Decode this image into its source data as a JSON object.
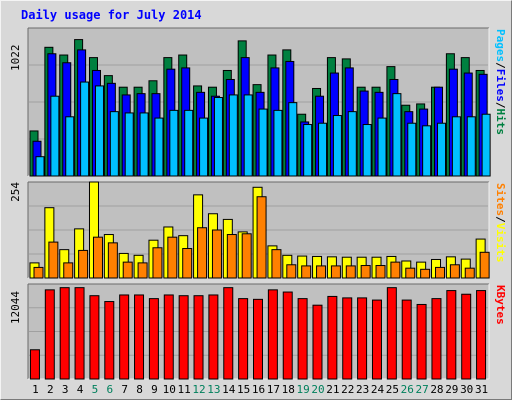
{
  "chart_data": [
    {
      "type": "bar",
      "panel": "pages-files-hits",
      "title": "Daily usage for July 2014",
      "y_tick_label": "1022",
      "y_tick_value": 1022,
      "ylim": [
        0,
        1150
      ],
      "categories": [
        "1",
        "2",
        "3",
        "4",
        "5",
        "6",
        "7",
        "8",
        "9",
        "10",
        "11",
        "12",
        "13",
        "14",
        "15",
        "16",
        "17",
        "18",
        "19",
        "20",
        "21",
        "22",
        "23",
        "24",
        "25",
        "26",
        "27",
        "28",
        "29",
        "30",
        "31"
      ],
      "series": [
        {
          "name": "Hits",
          "color": "#008040",
          "values": [
            350,
            1000,
            940,
            1060,
            920,
            780,
            690,
            690,
            740,
            920,
            940,
            700,
            690,
            820,
            1050,
            710,
            940,
            980,
            480,
            680,
            920,
            910,
            690,
            690,
            850,
            550,
            560,
            690,
            950,
            920,
            820
          ]
        },
        {
          "name": "Files",
          "color": "#0000ff",
          "values": [
            270,
            950,
            880,
            980,
            820,
            720,
            630,
            640,
            640,
            830,
            840,
            650,
            620,
            750,
            920,
            650,
            840,
            890,
            420,
            620,
            800,
            840,
            660,
            650,
            750,
            500,
            520,
            690,
            830,
            800,
            790
          ]
        },
        {
          "name": "Pages",
          "color": "#00c0ff",
          "values": [
            150,
            620,
            460,
            730,
            700,
            500,
            490,
            490,
            450,
            510,
            510,
            450,
            610,
            630,
            630,
            520,
            510,
            570,
            400,
            410,
            470,
            500,
            400,
            450,
            640,
            410,
            390,
            410,
            460,
            460,
            480
          ]
        }
      ],
      "legend": [
        "Pages",
        "/",
        "Files",
        "/",
        "Hits"
      ]
    },
    {
      "type": "bar",
      "panel": "visits-sites",
      "y_tick_label": "254",
      "y_tick_value": 254,
      "ylim": [
        0,
        254
      ],
      "categories": [
        "1",
        "2",
        "3",
        "4",
        "5",
        "6",
        "7",
        "8",
        "9",
        "10",
        "11",
        "12",
        "13",
        "14",
        "15",
        "16",
        "17",
        "18",
        "19",
        "20",
        "21",
        "22",
        "23",
        "24",
        "25",
        "26",
        "27",
        "28",
        "29",
        "30",
        "31"
      ],
      "series": [
        {
          "name": "Visits",
          "color": "#ffff00",
          "values": [
            40,
            186,
            75,
            130,
            254,
            115,
            65,
            60,
            100,
            135,
            112,
            220,
            170,
            155,
            122,
            240,
            85,
            60,
            58,
            57,
            56,
            55,
            55,
            55,
            57,
            45,
            42,
            49,
            56,
            50,
            103
          ]
        },
        {
          "name": "Sites",
          "color": "#ff8000",
          "values": [
            28,
            95,
            40,
            73,
            108,
            93,
            42,
            40,
            80,
            108,
            78,
            133,
            127,
            115,
            117,
            215,
            75,
            35,
            32,
            32,
            32,
            32,
            33,
            33,
            42,
            26,
            23,
            28,
            35,
            26,
            68
          ]
        }
      ],
      "legend": [
        "Sites",
        "/",
        "Visits"
      ]
    },
    {
      "type": "bar",
      "panel": "kbytes",
      "y_tick_label": "12044",
      "y_tick_value": 12044,
      "ylim": [
        0,
        13000
      ],
      "categories": [
        "1",
        "2",
        "3",
        "4",
        "5",
        "6",
        "7",
        "8",
        "9",
        "10",
        "11",
        "12",
        "13",
        "14",
        "15",
        "16",
        "17",
        "18",
        "19",
        "20",
        "21",
        "22",
        "23",
        "24",
        "25",
        "26",
        "27",
        "28",
        "29",
        "30",
        "31"
      ],
      "series": [
        {
          "name": "KBytes",
          "color": "#ff0000",
          "values": [
            4000,
            12200,
            12500,
            12500,
            11400,
            10600,
            11500,
            11500,
            11000,
            11500,
            11400,
            11400,
            11500,
            12500,
            11000,
            10900,
            12200,
            11900,
            11000,
            10100,
            11300,
            11100,
            11100,
            10800,
            12500,
            10800,
            10200,
            11000,
            12100,
            11600,
            12100
          ]
        }
      ],
      "legend": [
        "KBytes"
      ]
    }
  ],
  "colors": {
    "title": "#0000ff",
    "weekday_label": "#000000",
    "weekend_label": "#00805c",
    "grid": "#a0a0a0",
    "plot_bg": "#c0c0c0"
  },
  "weekend_days": [
    "5",
    "6",
    "12",
    "13",
    "19",
    "20",
    "26",
    "27"
  ]
}
